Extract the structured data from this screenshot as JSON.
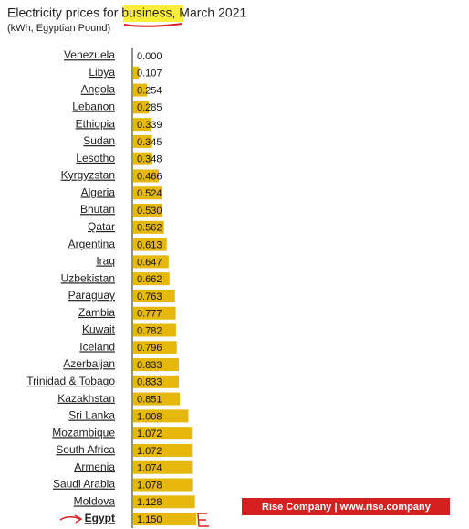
{
  "chart_data": {
    "type": "bar",
    "orientation": "horizontal",
    "title": "Electricity prices for business, March 2021",
    "subtitle": "(kWh, Egyptian Pound)",
    "categories": [
      "Venezuela",
      "Libya",
      "Angola",
      "Lebanon",
      "Ethiopia",
      "Sudan",
      "Lesotho",
      "Kyrgyzstan",
      "Algeria",
      "Bhutan",
      "Qatar",
      "Argentina",
      "Iraq",
      "Uzbekistan",
      "Paraguay",
      "Zambia",
      "Kuwait",
      "Iceland",
      "Azerbaijan",
      "Trinidad & Tobago",
      "Kazakhstan",
      "Sri Lanka",
      "Mozambique",
      "South Africa",
      "Armenia",
      "Saudi Arabia",
      "Moldova",
      "Egypt"
    ],
    "values": [
      0,
      0.107,
      0.254,
      0.285,
      0.339,
      0.345,
      0.348,
      0.466,
      0.524,
      0.53,
      0.562,
      0.613,
      0.647,
      0.662,
      0.763,
      0.777,
      0.782,
      0.796,
      0.833,
      0.833,
      0.851,
      1.008,
      1.072,
      1.072,
      1.074,
      1.078,
      1.128,
      1.15
    ],
    "value_labels": [
      "0.000",
      "0.107",
      "0.254",
      "0.285",
      "0.339",
      "0.345",
      "0.348",
      "0.466",
      "0.524",
      "0.530",
      "0.562",
      "0.613",
      "0.647",
      "0.662",
      "0.763",
      "0.777",
      "0.782",
      "0.796",
      "0.833",
      "0.833",
      "0.851",
      "1.008",
      "1.072",
      "1.072",
      "1.074",
      "1.078",
      "1.128",
      "1.150"
    ],
    "color": "#e5b80b",
    "xlim": [
      0,
      1.2
    ]
  },
  "watermark": "Rise Company | www.rise.company"
}
